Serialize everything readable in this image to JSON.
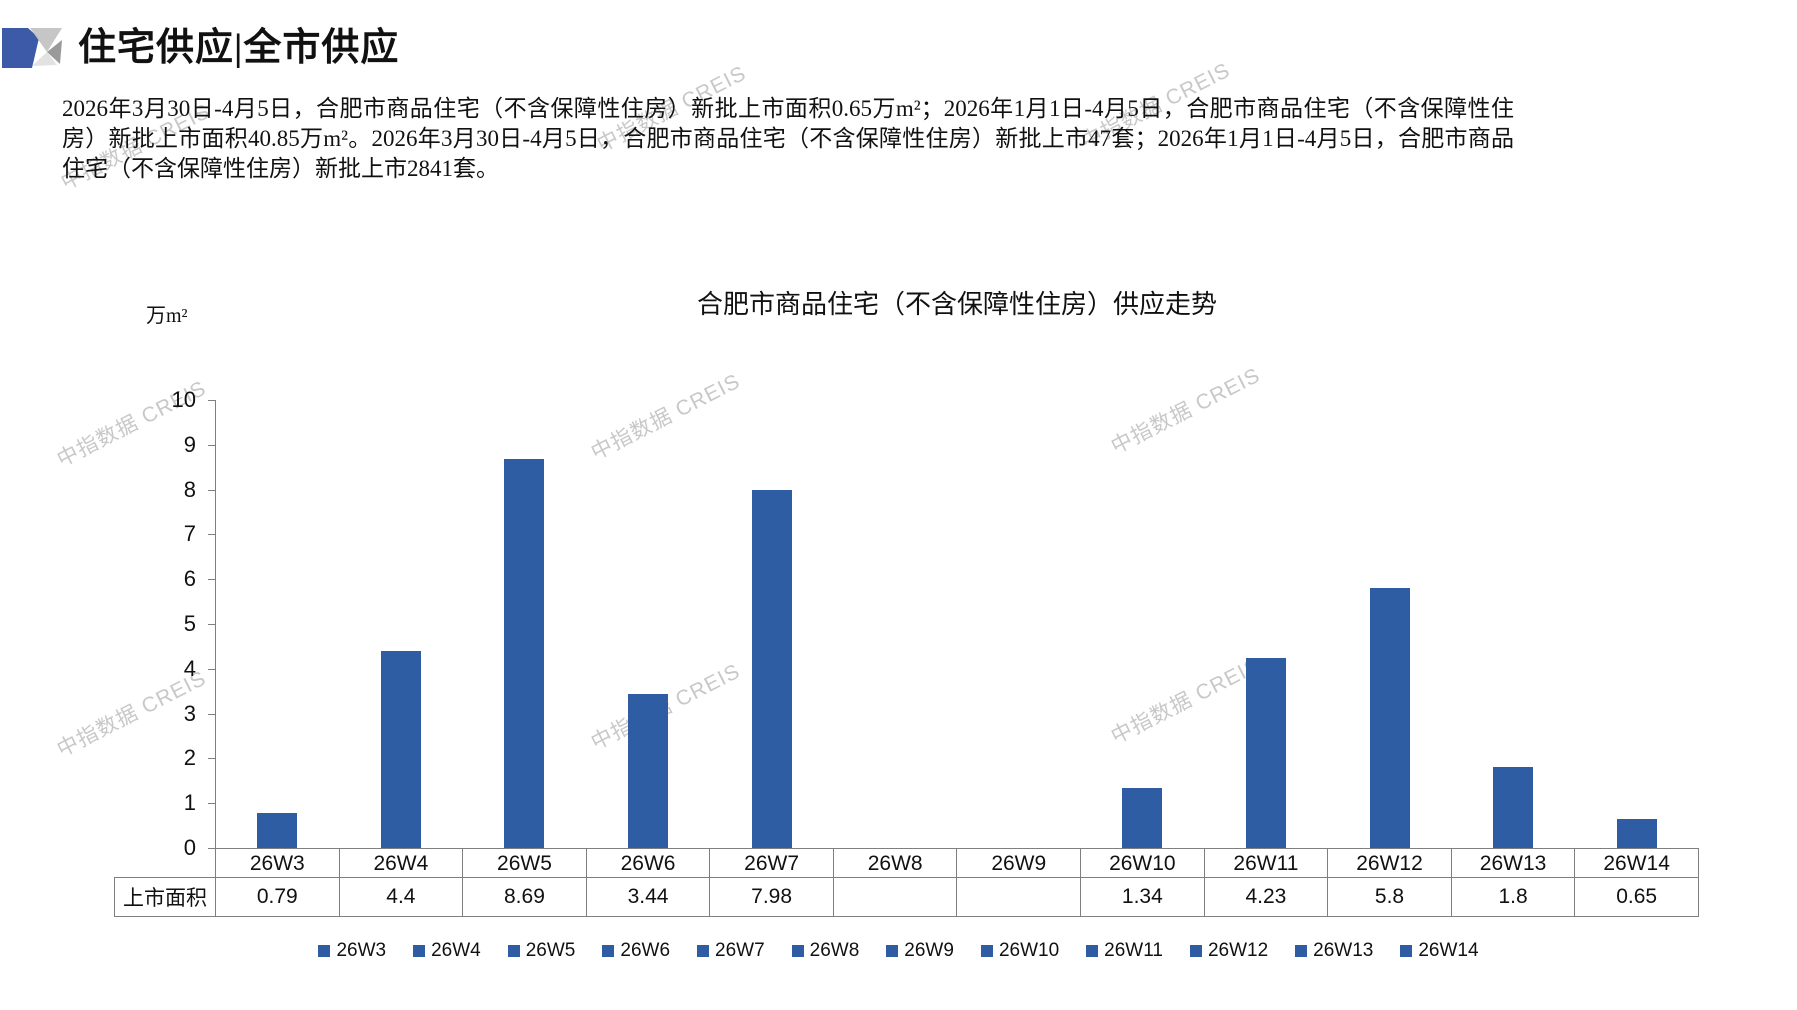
{
  "header": {
    "title": "住宅供应|全市供应"
  },
  "summary": {
    "text": "2026年3月30日-4月5日，合肥市商品住宅（不含保障性住房）新批上市面积0.65万m²；2026年1月1日-4月5日，合肥市商品住宅（不含保障性住房）新批上市面积40.85万m²。2026年3月30日-4月5日，合肥市商品住宅（不含保障性住房）新批上市47套；2026年1月1日-4月5日，合肥市商品住宅（不含保障性住房）新批上市2841套。"
  },
  "watermark": {
    "text": "中指数据 CREIS"
  },
  "chart_data": {
    "type": "bar",
    "title": "合肥市商品住宅（不含保障性住房）供应走势",
    "unit_label": "万m²",
    "categories": [
      "26W3",
      "26W4",
      "26W5",
      "26W6",
      "26W7",
      "26W8",
      "26W9",
      "26W10",
      "26W11",
      "26W12",
      "26W13",
      "26W14"
    ],
    "values": [
      0.79,
      4.4,
      8.69,
      3.44,
      7.98,
      null,
      null,
      1.34,
      4.23,
      5.8,
      1.8,
      0.65
    ],
    "table_row_header": "上市面积",
    "table_values": [
      "0.79",
      "4.4",
      "8.69",
      "3.44",
      "7.98",
      "",
      "",
      "1.34",
      "4.23",
      "5.8",
      "1.8",
      "0.65"
    ],
    "legend": [
      "26W3",
      "26W4",
      "26W5",
      "26W6",
      "26W7",
      "26W8",
      "26W9",
      "26W10",
      "26W11",
      "26W12",
      "26W13",
      "26W14"
    ],
    "ylim": [
      0,
      10
    ],
    "y_tick_step": 1,
    "grid": false,
    "legend_position": "bottom",
    "bar_color": "#2F5DA4"
  },
  "colors": {
    "accent_blue": "#2F5DA4",
    "logo_blue": "#3D5AA8",
    "logo_gray_light": "#c6c6c6",
    "logo_gray_dark": "#9a9a9a",
    "logo_gray_pale": "#e2e2e2",
    "border_gray": "#7f7f7f",
    "watermark_gray": "#c8c8c8"
  }
}
